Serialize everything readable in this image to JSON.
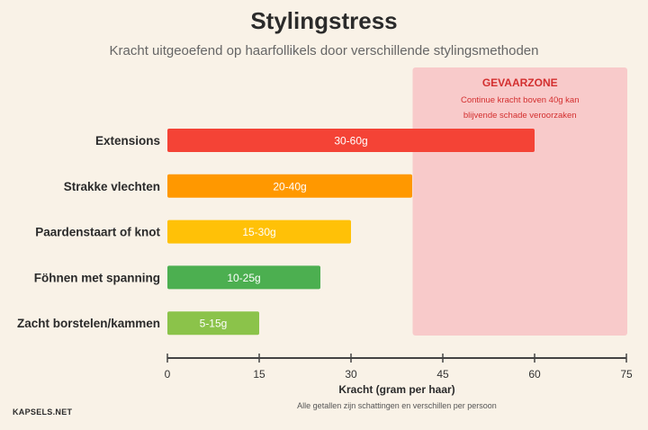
{
  "title": "Stylingstress",
  "subtitle": "Kracht uitgeoefend op haarfollikels door verschillende stylingsmethoden",
  "chart_data": {
    "type": "bar",
    "orientation": "horizontal",
    "categories": [
      "Extensions",
      "Strakke vlechten",
      "Paardenstaart of knot",
      "Föhnen met spanning",
      "Zacht borstelen/kammen"
    ],
    "values": [
      60,
      40,
      30,
      25,
      15
    ],
    "value_labels": [
      "30-60g",
      "20-40g",
      "15-30g",
      "10-25g",
      "5-15g"
    ],
    "colors": [
      "#f44336",
      "#ff9800",
      "#ffc107",
      "#4caf50",
      "#8bc34a"
    ],
    "xlabel": "Kracht (gram per haar)",
    "xlim": [
      0,
      75
    ],
    "xticks": [
      0,
      15,
      30,
      45,
      60,
      75
    ],
    "danger_zone": {
      "from": 40,
      "to": 75,
      "title": "GEVAARZONE",
      "text_line1": "Continue kracht boven 40g kan",
      "text_line2": "blijvende schade veroorzaken",
      "fill": "#f8caca",
      "title_color": "#d32f2f",
      "text_color": "#d32f2f"
    },
    "note": "Alle getallen zijn schattingen en verschillen per persoon"
  },
  "brand": "KAPSELS.NET"
}
